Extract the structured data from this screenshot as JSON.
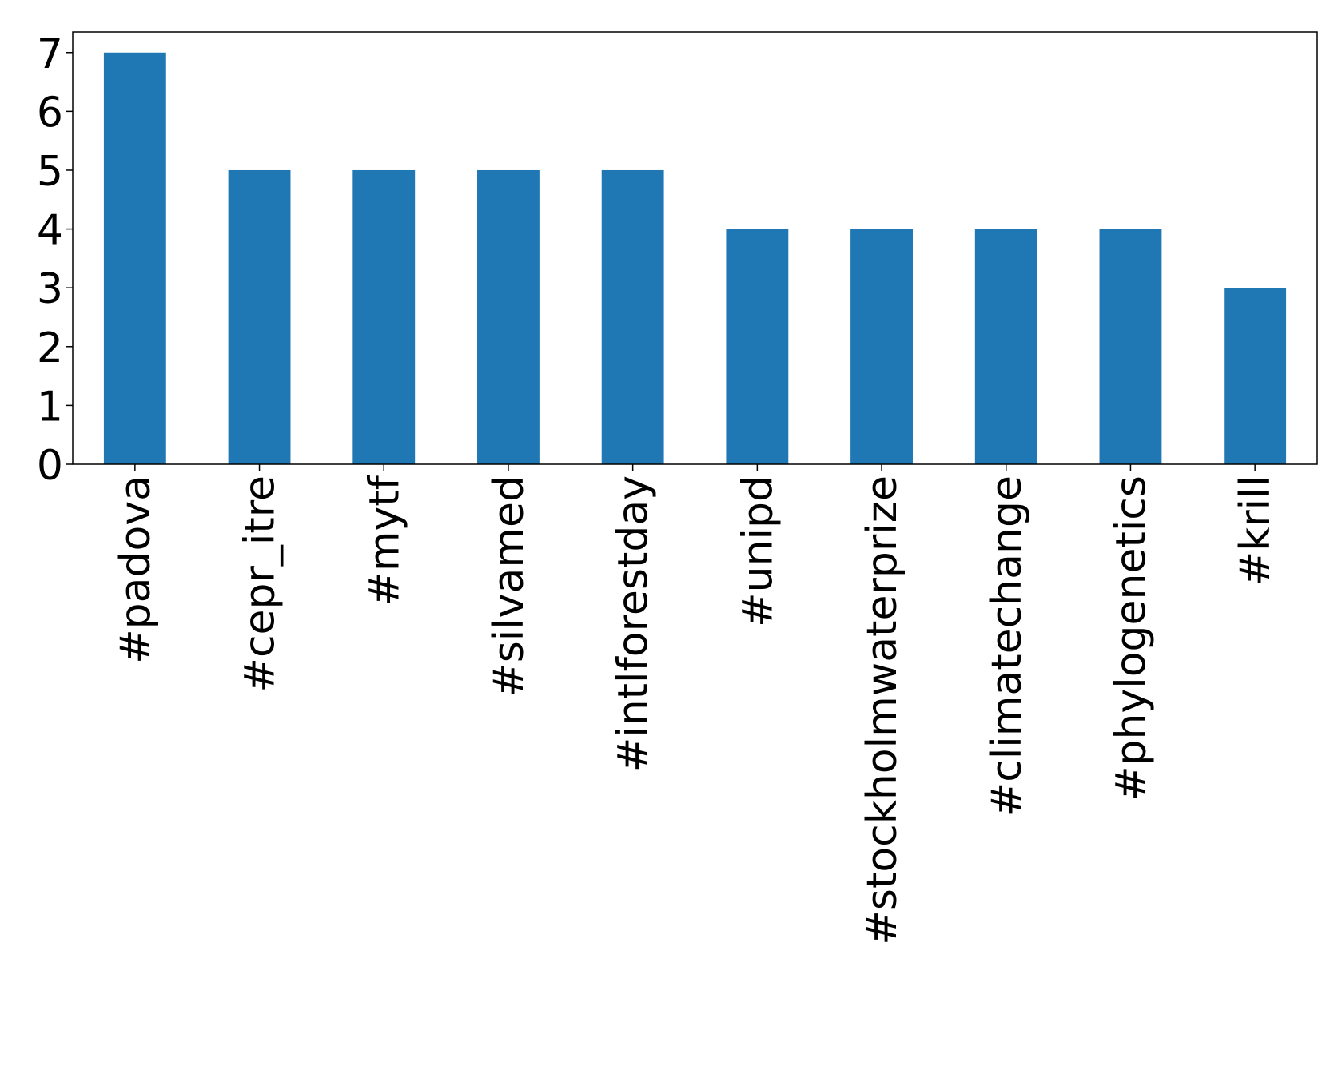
{
  "chart_data": {
    "type": "bar",
    "categories": [
      "#padova",
      "#cepr_itre",
      "#mytf",
      "#silvamed",
      "#intlforestday",
      "#unipd",
      "#stockholmwaterprize",
      "#climatechange",
      "#phylogenetics",
      "#krill"
    ],
    "values": [
      7,
      5,
      5,
      5,
      5,
      4,
      4,
      4,
      4,
      3
    ],
    "color": "#1f77b4",
    "ylim": [
      0,
      7.35
    ],
    "yticks": [
      0,
      1,
      2,
      3,
      4,
      5,
      6,
      7
    ],
    "grid": false
  }
}
